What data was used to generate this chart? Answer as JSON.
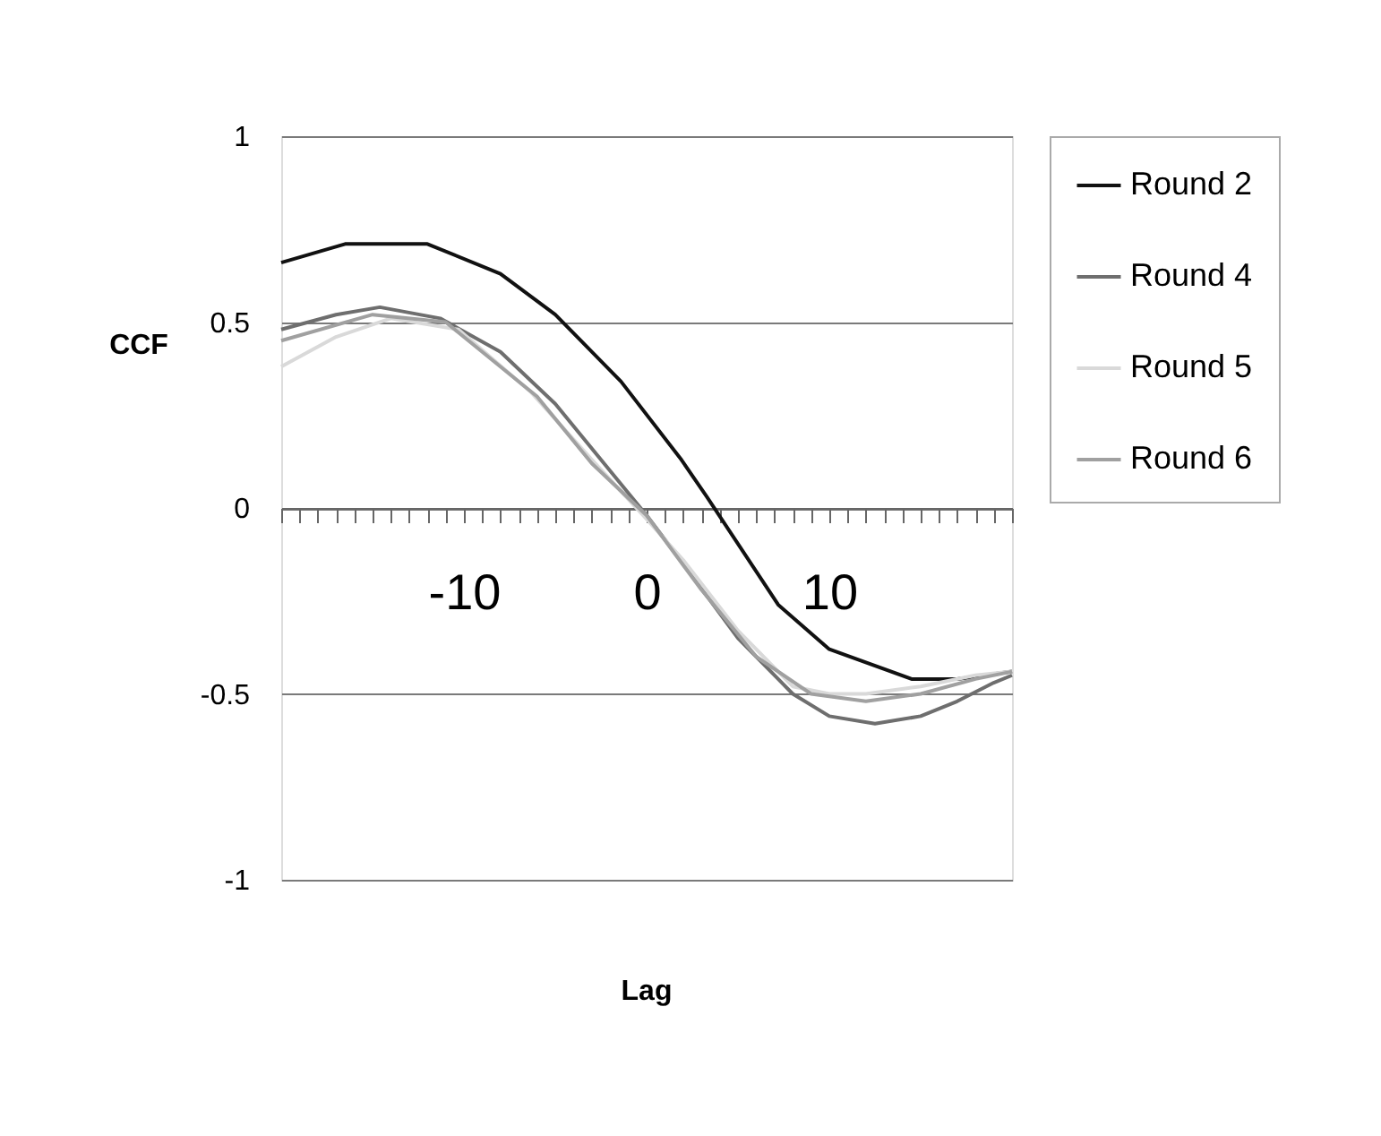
{
  "chart_data": {
    "type": "line",
    "annotations": [
      "Lag"
    ],
    "ylabel": "CCF",
    "xlim": [
      -20,
      20
    ],
    "ylim": [
      -1,
      1
    ],
    "xticks": [
      {
        "value": -20,
        "label": null
      },
      {
        "value": -19,
        "label": null
      },
      {
        "value": -18,
        "label": null
      },
      {
        "value": -17,
        "label": null
      },
      {
        "value": -16,
        "label": null
      },
      {
        "value": -15,
        "label": null
      },
      {
        "value": -14,
        "label": null
      },
      {
        "value": -13,
        "label": null
      },
      {
        "value": -12,
        "label": null
      },
      {
        "value": -11,
        "label": null
      },
      -10,
      {
        "value": -9,
        "label": null
      },
      {
        "value": -8,
        "label": null
      },
      {
        "value": -7,
        "label": null
      },
      {
        "value": -6,
        "label": null
      },
      {
        "value": -5,
        "label": null
      },
      {
        "value": -4,
        "label": null
      },
      {
        "value": -3,
        "label": null
      },
      {
        "value": -2,
        "label": null
      },
      {
        "value": -1,
        "label": null
      },
      0,
      {
        "value": 1,
        "label": null
      },
      {
        "value": 2,
        "label": null
      },
      {
        "value": 3,
        "label": null
      },
      {
        "value": 4,
        "label": null
      },
      {
        "value": 5,
        "label": null
      },
      {
        "value": 6,
        "label": null
      },
      {
        "value": 7,
        "label": null
      },
      {
        "value": 8,
        "label": null
      },
      {
        "value": 9,
        "label": null
      },
      10,
      {
        "value": 11,
        "label": null
      },
      {
        "value": 12,
        "label": null
      },
      {
        "value": 13,
        "label": null
      },
      {
        "value": 14,
        "label": null
      },
      {
        "value": 15,
        "label": null
      },
      {
        "value": 16,
        "label": null
      },
      {
        "value": 17,
        "label": null
      },
      {
        "value": 18,
        "label": null
      },
      {
        "value": 19,
        "label": null
      },
      {
        "value": 20,
        "label": null
      }
    ],
    "yticks": [
      -1,
      -0.5,
      0,
      0.5,
      1
    ],
    "grid": "y",
    "legend": "right",
    "marker": "none",
    "line_style": "solid",
    "series": [
      {
        "name": "Round 2",
        "color": "#111111",
        "x": [
          -20,
          -16.5,
          -12,
          -8,
          -5,
          -1.4,
          1.9,
          3.3,
          7.2,
          10,
          14.5,
          17,
          20
        ],
        "values": [
          0.66,
          0.71,
          0.71,
          0.63,
          0.52,
          0.34,
          0.13,
          0.03,
          -0.26,
          -0.38,
          -0.46,
          -0.46,
          -0.44
        ]
      },
      {
        "name": "Round 4",
        "color": "#6e6e6e",
        "x": [
          -20,
          -17,
          -14.6,
          -11.3,
          -8,
          -5,
          -2,
          0,
          2,
          5,
          8,
          10,
          12.5,
          15,
          17,
          19,
          20
        ],
        "values": [
          0.48,
          0.52,
          0.54,
          0.51,
          0.42,
          0.28,
          0.1,
          -0.02,
          -0.15,
          -0.35,
          -0.5,
          -0.56,
          -0.58,
          -0.56,
          -0.52,
          -0.47,
          -0.45
        ]
      },
      {
        "name": "Round 5",
        "color": "#d9d9d9",
        "x": [
          -20,
          -17,
          -14,
          -10.3,
          -6.3,
          -3,
          0,
          2,
          5,
          8,
          10,
          12,
          15,
          18,
          20
        ],
        "values": [
          0.38,
          0.46,
          0.51,
          0.48,
          0.31,
          0.13,
          -0.03,
          -0.14,
          -0.33,
          -0.48,
          -0.5,
          -0.5,
          -0.48,
          -0.45,
          -0.44
        ]
      },
      {
        "name": "Round 6",
        "color": "#a0a0a0",
        "x": [
          -20,
          -15,
          -11,
          -6,
          -3,
          0,
          3,
          6,
          9,
          12,
          15,
          18,
          20
        ],
        "values": [
          0.45,
          0.52,
          0.5,
          0.3,
          0.12,
          -0.02,
          -0.22,
          -0.4,
          -0.5,
          -0.52,
          -0.5,
          -0.46,
          -0.44
        ]
      }
    ]
  }
}
